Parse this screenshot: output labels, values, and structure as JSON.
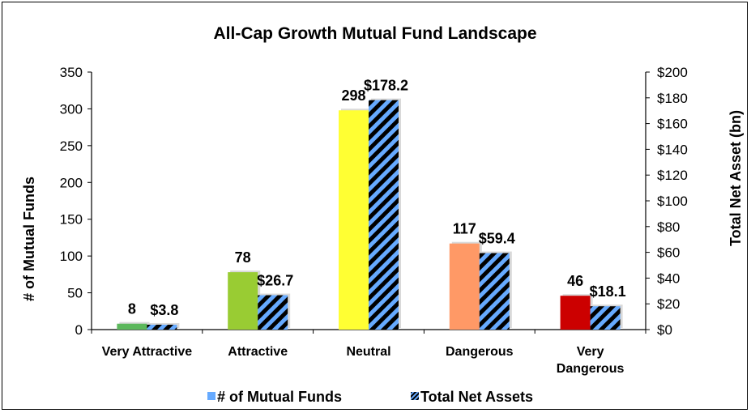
{
  "chart_data": {
    "type": "bar",
    "title": "All-Cap Growth Mutual Fund Landscape",
    "categories": [
      "Very Attractive",
      "Attractive",
      "Neutral",
      "Dangerous",
      "Very Dangerous"
    ],
    "category_lines": [
      [
        "Very Attractive"
      ],
      [
        "Attractive"
      ],
      [
        "Neutral"
      ],
      [
        "Dangerous"
      ],
      [
        "Very",
        "Dangerous"
      ]
    ],
    "series": [
      {
        "name": "# of Mutual Funds",
        "axis": "left",
        "values": [
          8,
          78,
          298,
          117,
          46
        ],
        "labels": [
          "8",
          "78",
          "298",
          "117",
          "46"
        ],
        "colors": [
          "#5cb85c",
          "#99cc33",
          "#ffff33",
          "#ff9966",
          "#cc0000"
        ]
      },
      {
        "name": "Total Net Assets",
        "axis": "right",
        "values": [
          3.8,
          26.7,
          178.2,
          59.4,
          18.1
        ],
        "labels": [
          "$3.8",
          "$26.7",
          "$178.2",
          "$59.4",
          "$18.1"
        ],
        "pattern": "black-blue-diagonal-stripes"
      }
    ],
    "ylabel_left": "# of Mutual Funds",
    "ylabel_right": "Total Net Asset (bn)",
    "ylim_left": [
      0,
      350
    ],
    "ylim_right": [
      0,
      200
    ],
    "yticks_left": [
      "0",
      "50",
      "100",
      "150",
      "200",
      "250",
      "300",
      "350"
    ],
    "yticks_right": [
      "$0",
      "$20",
      "$40",
      "$60",
      "$80",
      "$100",
      "$120",
      "$140",
      "$160",
      "$180",
      "$200"
    ],
    "grid": false,
    "legend_position": "bottom",
    "legend_colors": {
      "funds": "#66aaff",
      "assets_stripe_a": "#000000",
      "assets_stripe_b": "#66aaff"
    }
  }
}
